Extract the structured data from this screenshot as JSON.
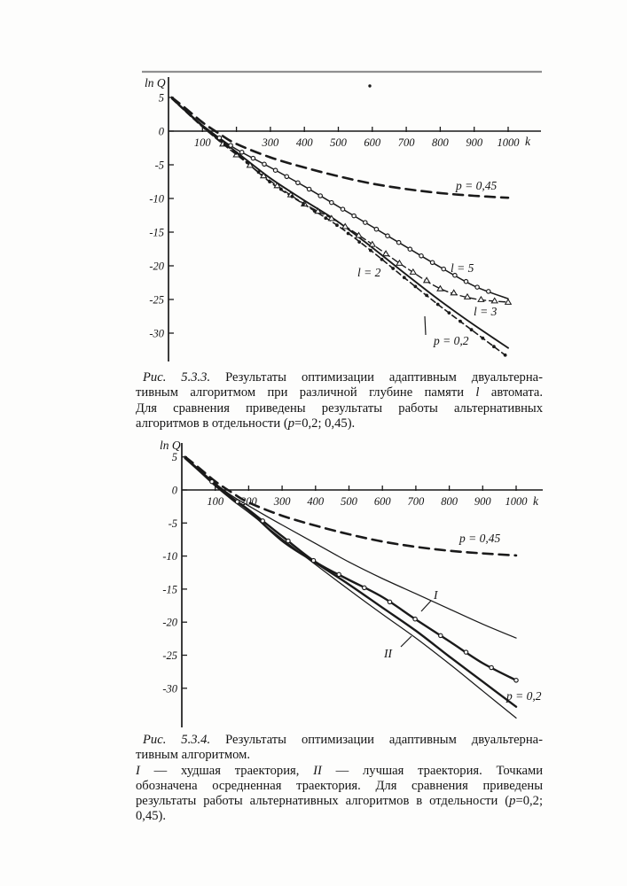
{
  "page": {
    "background": "#fdfdfc",
    "ink": "#1a1a1a",
    "rule_color": "#909090"
  },
  "chart_data": [
    {
      "type": "line",
      "figure": "5.3.3",
      "xlabel": "k",
      "ylabel": "ln Q",
      "xlim": [
        0,
        1080
      ],
      "ylim": [
        -35,
        6
      ],
      "grid": false,
      "legend_position": "inline-labels",
      "xticks": {
        "values": [
          100,
          200,
          300,
          400,
          500,
          600,
          700,
          800,
          900,
          1000
        ],
        "labels": [
          "100",
          "",
          "300",
          "400",
          "500",
          "600",
          "700",
          "800",
          "900",
          "1000"
        ]
      },
      "yticks": {
        "values": [
          5,
          0,
          -5,
          -10,
          -15,
          -20,
          -25,
          -30
        ],
        "labels": [
          "5",
          "0",
          "-5",
          "-10",
          "-15",
          "-20",
          "-25",
          "-30"
        ]
      },
      "series": [
        {
          "id": "p045",
          "name": "альтернативный алгоритм p = 0,45",
          "label": "p = 0,45",
          "style": "dashed-bold",
          "marker": "none",
          "k": [
            10,
            50,
            100,
            150,
            200,
            300,
            400,
            500,
            600,
            700,
            800,
            900,
            1000
          ],
          "lnQ": [
            5.0,
            3.4,
            1.3,
            -0.4,
            -1.9,
            -3.9,
            -5.4,
            -6.7,
            -7.8,
            -8.6,
            -9.2,
            -9.6,
            -9.9
          ]
        },
        {
          "id": "l5",
          "name": "глубина памяти l = 5",
          "label": "l = 5",
          "style": "solid",
          "marker": "open-circle",
          "k": [
            10,
            50,
            100,
            150,
            200,
            300,
            400,
            500,
            600,
            700,
            800,
            900,
            1000
          ],
          "lnQ": [
            4.9,
            3.1,
            0.9,
            -1.0,
            -2.7,
            -5.4,
            -8.2,
            -11.2,
            -14.2,
            -17.2,
            -20.2,
            -23.0,
            -24.9
          ]
        },
        {
          "id": "l3",
          "name": "глубина памяти l = 3",
          "label": "l = 3",
          "style": "dashed",
          "marker": "open-triangle",
          "k": [
            10,
            50,
            100,
            150,
            200,
            300,
            400,
            500,
            600,
            700,
            800,
            900,
            1000
          ],
          "lnQ": [
            4.8,
            2.9,
            0.6,
            -1.5,
            -3.5,
            -7.4,
            -10.8,
            -13.5,
            -16.8,
            -20.3,
            -23.4,
            -24.9,
            -25.4
          ]
        },
        {
          "id": "l2",
          "name": "глубина памяти l = 2",
          "label": "l = 2",
          "style": "solid-medium",
          "marker": "none",
          "k": [
            10,
            50,
            100,
            150,
            200,
            300,
            400,
            500,
            600,
            700,
            800,
            900,
            1000
          ],
          "lnQ": [
            4.85,
            3.0,
            0.8,
            -1.2,
            -3.1,
            -7.0,
            -10.3,
            -13.5,
            -17.3,
            -21.3,
            -25.2,
            -28.8,
            -32.2
          ]
        },
        {
          "id": "p02",
          "name": "альтернативный алгоритм p = 0,2",
          "label": "p = 0,2",
          "style": "dash-dot",
          "marker": "filled-dot",
          "k": [
            10,
            50,
            100,
            150,
            200,
            300,
            400,
            500,
            600,
            700,
            800,
            900,
            1000
          ],
          "lnQ": [
            4.8,
            2.95,
            0.7,
            -1.4,
            -3.3,
            -7.6,
            -10.9,
            -14.1,
            -17.9,
            -22.0,
            -26.0,
            -29.8,
            -33.6
          ]
        }
      ]
    },
    {
      "type": "line",
      "figure": "5.3.4",
      "xlabel": "k",
      "ylabel": "ln Q",
      "xlim": [
        0,
        1080
      ],
      "ylim": [
        -36,
        6
      ],
      "grid": false,
      "legend_position": "inline-labels",
      "xticks": {
        "values": [
          100,
          200,
          300,
          400,
          500,
          600,
          700,
          800,
          900,
          1000
        ],
        "labels": [
          "100",
          "200",
          "300",
          "400",
          "500",
          "600",
          "700",
          "800",
          "900",
          "1000"
        ]
      },
      "yticks": {
        "values": [
          5,
          0,
          -5,
          -10,
          -15,
          -20,
          -25,
          -30
        ],
        "labels": [
          "5",
          "0",
          "-5",
          "-10",
          "-15",
          "-20",
          "-25",
          "-30"
        ]
      },
      "series": [
        {
          "id": "p045",
          "name": "альтернативный алгоритм p = 0,45",
          "label": "p = 0,45",
          "style": "dashed-bold",
          "marker": "none",
          "k": [
            10,
            50,
            100,
            150,
            200,
            300,
            400,
            500,
            600,
            700,
            800,
            900,
            1000
          ],
          "lnQ": [
            5.0,
            3.4,
            1.3,
            -0.4,
            -1.9,
            -3.9,
            -5.4,
            -6.7,
            -7.8,
            -8.6,
            -9.2,
            -9.6,
            -9.9
          ]
        },
        {
          "id": "I",
          "name": "I — худшая траектория",
          "label": "I",
          "style": "solid-thin",
          "marker": "none",
          "k": [
            10,
            50,
            100,
            150,
            200,
            300,
            400,
            500,
            600,
            700,
            800,
            900,
            1000
          ],
          "lnQ": [
            4.9,
            3.2,
            1.0,
            -0.9,
            -2.4,
            -5.3,
            -8.1,
            -10.9,
            -13.4,
            -15.7,
            -18.0,
            -20.3,
            -22.4
          ]
        },
        {
          "id": "II",
          "name": "II — лучшая траектория",
          "label": "II",
          "style": "solid-thin",
          "marker": "none",
          "k": [
            10,
            50,
            100,
            150,
            200,
            300,
            400,
            500,
            600,
            700,
            800,
            900,
            1000
          ],
          "lnQ": [
            4.8,
            3.0,
            0.6,
            -1.5,
            -3.4,
            -7.4,
            -11.3,
            -15.1,
            -18.8,
            -22.4,
            -26.3,
            -30.4,
            -34.5
          ]
        },
        {
          "id": "avg",
          "name": "осредненная траектория (точками)",
          "label": "",
          "style": "solid-bold",
          "marker": "open-circle",
          "k": [
            10,
            50,
            100,
            150,
            200,
            300,
            400,
            500,
            600,
            700,
            800,
            900,
            1000
          ],
          "lnQ": [
            4.85,
            3.1,
            0.8,
            -1.2,
            -3.0,
            -7.0,
            -10.9,
            -13.6,
            -16.2,
            -19.6,
            -22.9,
            -26.2,
            -28.8
          ]
        },
        {
          "id": "p02",
          "name": "альтернативный алгоритм p = 0,2",
          "label": "p = 0,2",
          "style": "solid-bold",
          "marker": "none",
          "k": [
            10,
            50,
            100,
            150,
            200,
            300,
            400,
            500,
            600,
            700,
            800,
            900,
            1000
          ],
          "lnQ": [
            4.8,
            3.0,
            0.7,
            -1.3,
            -3.1,
            -7.7,
            -11.0,
            -14.3,
            -17.8,
            -21.3,
            -25.2,
            -29.0,
            -32.8
          ]
        }
      ]
    }
  ],
  "captions": [
    {
      "lines": [
        {
          "just": true,
          "segments": [
            {
              "t": "Рис. 5.3.3.",
              "i": true
            },
            {
              "t": " Результаты оптимизации адаптивным двуальтерна-",
              "i": false
            }
          ]
        },
        {
          "just": true,
          "segments": [
            {
              "t": "тивным алгоритмом при различной глубине памяти ",
              "i": false
            },
            {
              "t": "l",
              "i": true
            },
            {
              "t": " автомата.",
              "i": false
            }
          ]
        },
        {
          "just": true,
          "segments": [
            {
              "t": "Для сравнения приведены результаты работы альтернативных",
              "i": false
            }
          ]
        },
        {
          "just": false,
          "segments": [
            {
              "t": "алгоритмов в отдельности (",
              "i": false
            },
            {
              "t": "p",
              "i": true
            },
            {
              "t": "=0,2; 0,45).",
              "i": false
            }
          ]
        }
      ]
    },
    {
      "lines": [
        {
          "just": true,
          "segments": [
            {
              "t": "Рис. 5.3.4.",
              "i": true
            },
            {
              "t": " Результаты оптимизации адаптивным двуальтерна-",
              "i": false
            }
          ]
        },
        {
          "just": false,
          "segments": [
            {
              "t": "тивным алгоритмом.",
              "i": false
            }
          ]
        },
        {
          "just": true,
          "segments": [
            {
              "t": "I",
              "i": true
            },
            {
              "t": " — худшая траектория, ",
              "i": false
            },
            {
              "t": "II",
              "i": true
            },
            {
              "t": " — лучшая траектория. Точками",
              "i": false
            }
          ]
        },
        {
          "just": true,
          "segments": [
            {
              "t": "обозначена осредненная траектория. Для сравнения приведены",
              "i": false
            }
          ]
        },
        {
          "just": true,
          "segments": [
            {
              "t": "результаты работы альтернативных алгоритмов в отдельности (",
              "i": false
            },
            {
              "t": "p",
              "i": true
            },
            {
              "t": "=0,2;",
              "i": false
            }
          ]
        },
        {
          "just": false,
          "segments": [
            {
              "t": "0,45).",
              "i": false
            }
          ]
        }
      ]
    }
  ]
}
